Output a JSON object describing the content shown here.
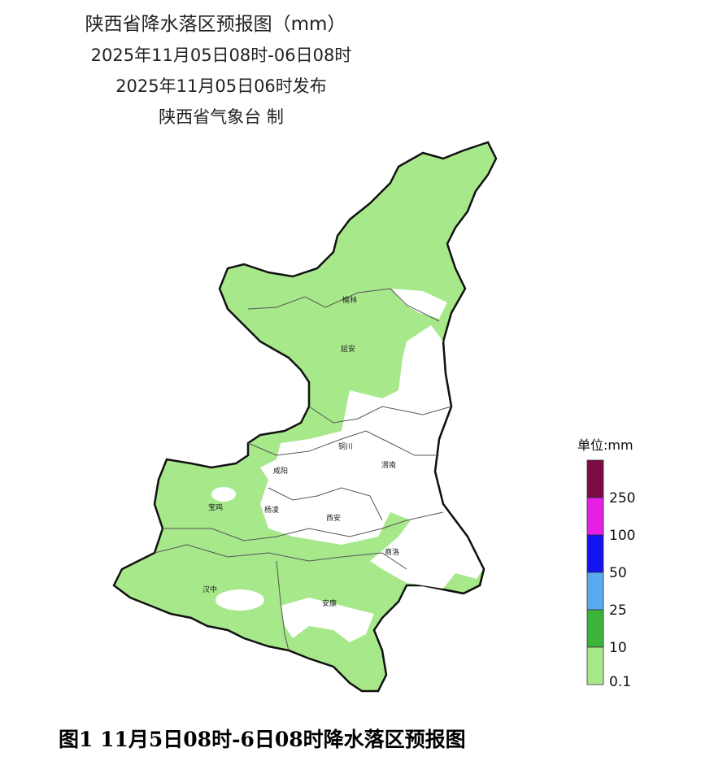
{
  "header": {
    "title": "陕西省降水落区预报图（mm）",
    "period": "2025年11月05日08时-06日08时",
    "issued": "2025年11月05日06时发布",
    "producer": "陕西省气象台 制"
  },
  "legend": {
    "unit": "单位:mm",
    "colors": [
      "#7b0a45",
      "#e61ee6",
      "#1414f0",
      "#5aaaf0",
      "#3cb43c",
      "#a6e88a"
    ],
    "labels": [
      "250",
      "100",
      "50",
      "25",
      "10",
      "0.1"
    ]
  },
  "cities": [
    "榆林",
    "延安",
    "铜川",
    "渭南",
    "咸阳",
    "宝鸡",
    "杨凌",
    "西安",
    "商洛",
    "汉中",
    "安康"
  ],
  "caption": "图1  11月5日08时-6日08时降水落区预报图"
}
